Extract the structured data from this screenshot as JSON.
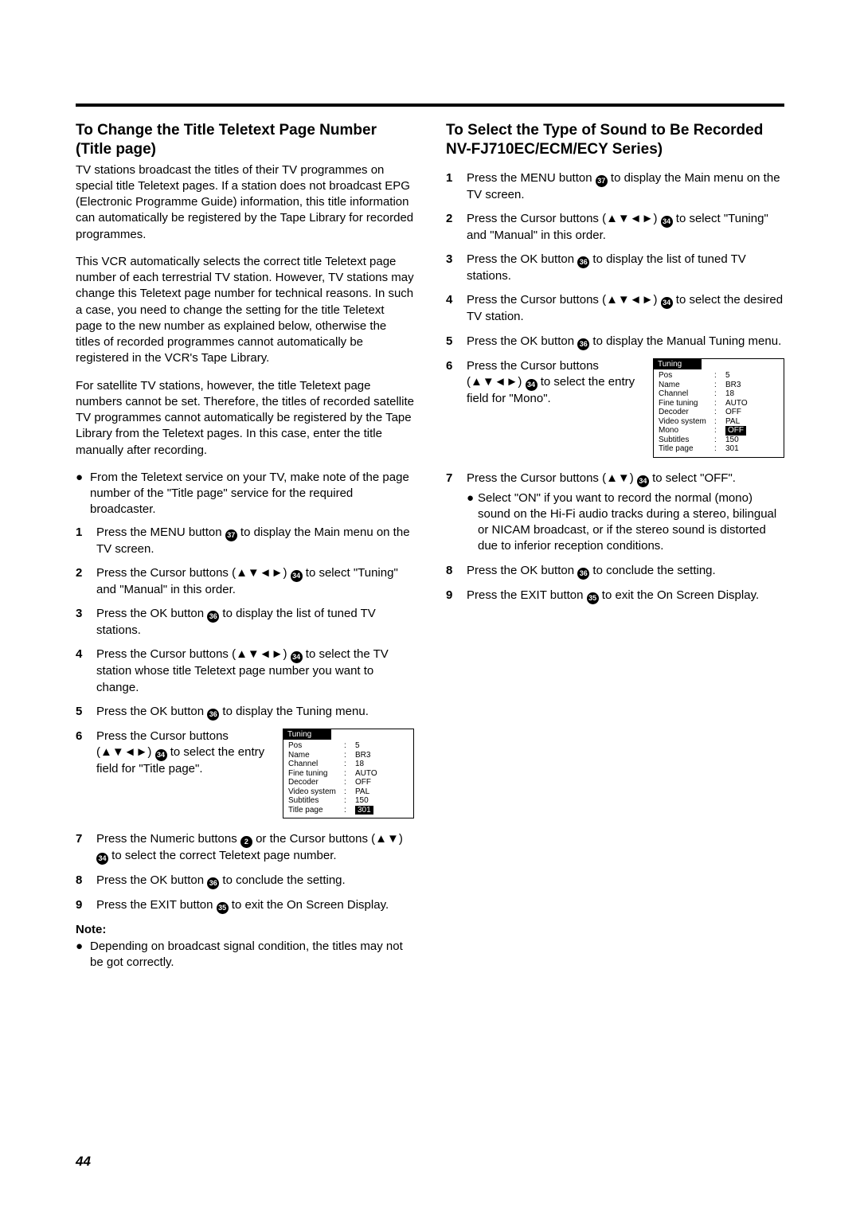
{
  "page_number": "44",
  "left": {
    "heading": "To Change the Title Teletext Page Number (Title page)",
    "p1": "TV stations broadcast the titles of their TV programmes on special title Teletext pages. If a station does not broadcast EPG (Electronic Programme Guide) information, this title information can automatically be registered by the Tape Library for recorded programmes.",
    "p2": "This VCR automatically selects the correct title Teletext page number of each terrestrial TV station. However, TV stations may change this Teletext page number for technical reasons. In such a case, you need to change the setting for the title Teletext page to the new number as explained below, otherwise the titles of recorded programmes cannot automatically be registered in the VCR's Tape Library.",
    "p3": "For satellite TV stations, however, the title Teletext page numbers cannot be set. Therefore, the titles of recorded satellite TV programmes cannot automatically be registered by the Tape Library from the Teletext pages. In this case, enter the title manually after recording.",
    "bul1": "From the Teletext service on your TV, make note of the page number of the \"Title page\" service for the required broadcaster.",
    "s1a": "Press the MENU button ",
    "s1b": " to display the Main menu on the TV screen.",
    "s2a": "Press the Cursor buttons (▲▼◄►) ",
    "s2b": " to select \"Tuning\" and \"Manual\" in this order.",
    "s3a": "Press the OK button ",
    "s3b": " to display the list of tuned TV stations.",
    "s4a": "Press the Cursor buttons (▲▼◄►) ",
    "s4b": " to select the TV station whose title Teletext page number you want to change.",
    "s5a": "Press the OK button ",
    "s5b": " to display the Tuning menu.",
    "s6a": "Press the Cursor buttons (▲▼◄►) ",
    "s6b": " to select the entry field for \"Title page\".",
    "s7a": "Press the Numeric buttons ",
    "s7b": " or the Cursor buttons (▲▼) ",
    "s7c": " to select the correct Teletext page number.",
    "s8a": "Press the OK button ",
    "s8b": " to conclude the setting.",
    "s9a": "Press the EXIT button ",
    "s9b": " to exit the On Screen Display.",
    "note_hd": "Note:",
    "note1": "Depending on broadcast signal condition, the titles may not be got correctly."
  },
  "right": {
    "heading": "To Select the Type of Sound to Be Recorded\nNV-FJ710EC/ECM/ECY Series)",
    "h_line1": "To Select the Type of Sound to Be Recorded",
    "h_line2": "NV-FJ710EC/ECM/ECY Series)",
    "s1a": "Press the MENU button ",
    "s1b": " to display the Main menu on the TV screen.",
    "s2a": "Press the Cursor buttons (▲▼◄►) ",
    "s2b": " to select \"Tuning\" and \"Manual\" in this order.",
    "s3a": "Press the OK button ",
    "s3b": " to display the list of tuned TV stations.",
    "s4a": "Press the Cursor buttons (▲▼◄►) ",
    "s4b": " to select the desired TV station.",
    "s5a": "Press the OK button ",
    "s5b": " to display the Manual Tuning menu.",
    "s6a": "Press the Cursor buttons (▲▼◄►) ",
    "s6b": " to select the entry field for \"Mono\".",
    "s7a": "Press the Cursor buttons (▲▼) ",
    "s7b": " to select \"OFF\".",
    "s7sub": "Select \"ON\" if you want to record the normal (mono) sound on the Hi-Fi audio tracks during a stereo, bilingual or NICAM broadcast, or if the stereo sound is distorted due to inferior reception conditions.",
    "s8a": "Press the OK button ",
    "s8b": " to conclude the setting.",
    "s9a": "Press the EXIT button ",
    "s9b": " to exit the On Screen Display."
  },
  "refs": {
    "menu": "37",
    "cursor": "34",
    "ok": "36",
    "exit": "35",
    "numeric": "2"
  },
  "tuning_left": {
    "title": "Tuning",
    "rows": [
      {
        "k": "Pos",
        "v": "5"
      },
      {
        "k": "Name",
        "v": "BR3"
      },
      {
        "k": "Channel",
        "v": "18"
      },
      {
        "k": "Fine tuning",
        "v": "AUTO"
      },
      {
        "k": "Decoder",
        "v": "OFF"
      },
      {
        "k": "Video system",
        "v": "PAL"
      },
      {
        "k": "Subtitles",
        "v": "150"
      },
      {
        "k": "Title page",
        "v": "301",
        "hl": "v"
      }
    ]
  },
  "tuning_right": {
    "title": "Tuning",
    "rows": [
      {
        "k": "Pos",
        "v": "5"
      },
      {
        "k": "Name",
        "v": "BR3"
      },
      {
        "k": "Channel",
        "v": "18"
      },
      {
        "k": "Fine tuning",
        "v": "AUTO"
      },
      {
        "k": "Decoder",
        "v": "OFF"
      },
      {
        "k": "Video system",
        "v": "PAL"
      },
      {
        "k": "Mono",
        "v": "OFF",
        "hl": "v"
      },
      {
        "k": "Subtitles",
        "v": "150"
      },
      {
        "k": "Title page",
        "v": "301"
      }
    ]
  }
}
